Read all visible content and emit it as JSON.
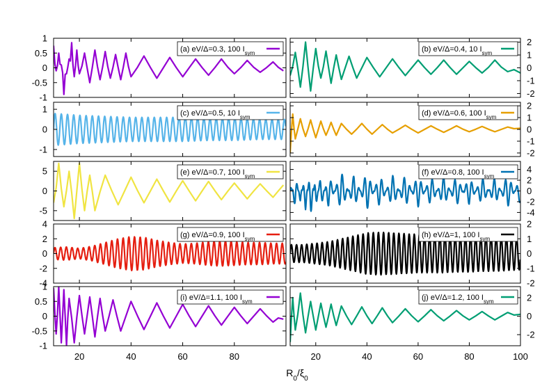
{
  "chart_data": {
    "type": "line",
    "layout": "5x2 grid of panels sharing x axis",
    "xlabel": "R₀/ξ₀",
    "xlim_left": [
      10,
      100
    ],
    "xlim_right": [
      10,
      100
    ],
    "xticks_left": [
      "20",
      "40",
      "60",
      "80"
    ],
    "xticks_right": [
      "20",
      "40",
      "60",
      "80",
      "100"
    ],
    "legend_placement": "top-right",
    "grid": false,
    "panels": [
      {
        "id": "a",
        "label": "(a) eV/Δ=0.3, 100 I",
        "label_sub": "sym",
        "color": "#9400d3",
        "column": "left",
        "ylim": [
          -1,
          1
        ],
        "yticks": [
          {
            "v": 1,
            "t": "1"
          },
          {
            "v": 0.5,
            "t": "0.5"
          },
          {
            "v": 0,
            "t": "0"
          },
          {
            "v": -0.5,
            "t": "-0.5"
          },
          {
            "v": -1,
            "t": "-1"
          }
        ],
        "x": [
          10,
          11,
          12,
          13,
          14,
          15,
          16,
          17,
          18,
          19,
          20,
          22,
          24,
          26,
          28,
          30,
          32,
          34,
          36,
          38,
          40,
          45,
          50,
          55,
          60,
          65,
          70,
          75,
          80,
          85,
          90,
          95,
          99
        ],
        "values": [
          0.75,
          -0.1,
          0.5,
          0.1,
          -0.9,
          -0.2,
          0.3,
          0.85,
          -0.3,
          0.6,
          -0.2,
          0.5,
          -0.5,
          0.6,
          -0.4,
          0.55,
          -0.35,
          0.45,
          -0.4,
          0.5,
          -0.3,
          0.4,
          -0.35,
          0.35,
          -0.3,
          0.3,
          -0.25,
          0.3,
          -0.2,
          0.25,
          -0.15,
          0.2,
          -0.1
        ]
      },
      {
        "id": "b",
        "label": "(b) eV/Δ=0.4, 10 I",
        "label_sub": "sym",
        "color": "#009e73",
        "column": "right",
        "ylim": [
          -2.3,
          2.3
        ],
        "yticks": [
          {
            "v": 2,
            "t": "2"
          },
          {
            "v": 1,
            "t": "1"
          },
          {
            "v": 0,
            "t": "0"
          },
          {
            "v": -1,
            "t": "-1"
          },
          {
            "v": -2,
            "t": "-2"
          }
        ],
        "x": [
          10,
          12,
          14,
          16,
          18,
          20,
          22,
          24,
          26,
          28,
          30,
          33,
          36,
          40,
          45,
          50,
          55,
          60,
          65,
          70,
          75,
          80,
          85,
          90,
          95,
          100
        ],
        "values": [
          -0.6,
          1.2,
          -1.5,
          2.0,
          -1.8,
          1.5,
          -0.8,
          1.3,
          -1.2,
          1.0,
          -0.9,
          0.9,
          -0.8,
          0.8,
          -0.7,
          0.7,
          -0.6,
          0.6,
          -0.5,
          0.6,
          -0.5,
          0.5,
          -0.4,
          0.6,
          -0.3,
          -0.4
        ]
      },
      {
        "id": "c",
        "label": "(c) eV/Δ=0.5, 10 I",
        "label_sub": "sym",
        "color": "#56b4e9",
        "column": "left",
        "ylim": [
          -1.35,
          1.35
        ],
        "yticks": [
          {
            "v": 1,
            "t": "1"
          },
          {
            "v": 0,
            "t": "0"
          },
          {
            "v": -1,
            "t": "-1"
          }
        ],
        "x": [
          10,
          20,
          30,
          40,
          50,
          60,
          70,
          80,
          90,
          99
        ],
        "values": [
          0.8,
          0.7,
          0.65,
          0.6,
          0.6,
          0.6,
          0.55,
          0.55,
          0.5,
          0.5
        ],
        "wave_period": 2.4
      },
      {
        "id": "d",
        "label": "(d) eV/Δ=0.6, 100 I",
        "label_sub": "sym",
        "color": "#e69f00",
        "column": "right",
        "ylim": [
          -2.3,
          2.3
        ],
        "yticks": [
          {
            "v": 2,
            "t": "2"
          },
          {
            "v": 1,
            "t": "1"
          },
          {
            "v": 0,
            "t": "0"
          },
          {
            "v": -1,
            "t": "-1"
          },
          {
            "v": -2,
            "t": "-2"
          }
        ],
        "x": [
          10,
          11,
          12,
          14,
          16,
          18,
          20,
          22,
          24,
          26,
          28,
          30,
          34,
          38,
          42,
          46,
          50,
          55,
          60,
          65,
          70,
          75,
          80,
          85,
          90,
          95,
          100
        ],
        "values": [
          -2.0,
          1.3,
          -0.8,
          0.9,
          -0.6,
          0.8,
          -0.7,
          0.7,
          -0.5,
          0.6,
          -0.5,
          0.5,
          -0.4,
          0.5,
          -0.4,
          0.4,
          -0.3,
          0.35,
          -0.3,
          0.3,
          -0.25,
          0.3,
          -0.2,
          0.25,
          -0.2,
          0.2,
          0.1
        ]
      },
      {
        "id": "e",
        "label": "(e) eV/Δ=0.7, 100 I",
        "label_sub": "sym",
        "color": "#f0e442",
        "column": "left",
        "ylim": [
          -7.5,
          7.5
        ],
        "yticks": [
          {
            "v": 5,
            "t": "5"
          },
          {
            "v": 0,
            "t": "0"
          },
          {
            "v": -5,
            "t": "-5"
          }
        ],
        "x": [
          10,
          12,
          14,
          16,
          18,
          20,
          22,
          24,
          26,
          30,
          35,
          40,
          45,
          50,
          55,
          60,
          65,
          70,
          75,
          80,
          85,
          90,
          95,
          99
        ],
        "values": [
          -3.0,
          7.0,
          -4.0,
          5.0,
          -7.0,
          7.0,
          -5.0,
          4.0,
          -5.0,
          4.0,
          -3.5,
          3.5,
          -3.0,
          3.0,
          -2.8,
          2.6,
          -2.5,
          2.4,
          -2.2,
          2.0,
          -2.0,
          1.8,
          -1.6,
          1.5
        ]
      },
      {
        "id": "f",
        "label": "(f) eV/Δ=0.8, 100 I",
        "label_sub": "sym",
        "color": "#0072b2",
        "column": "right",
        "ylim": [
          -5.5,
          5.5
        ],
        "yticks": [
          {
            "v": 4,
            "t": "4"
          },
          {
            "v": 2,
            "t": "2"
          },
          {
            "v": 0,
            "t": "0"
          },
          {
            "v": -2,
            "t": "-2"
          },
          {
            "v": -4,
            "t": "-4"
          }
        ],
        "x": [
          10,
          12,
          14,
          16,
          18,
          20,
          22,
          25,
          30,
          35,
          40,
          45,
          50,
          55,
          60,
          65,
          70,
          75,
          80,
          85,
          90,
          95,
          100
        ],
        "values": [
          1.5,
          -3.0,
          2.0,
          -3.5,
          4.5,
          -3.0,
          3.0,
          -3.0,
          3.5,
          -3.0,
          3.5,
          -3.0,
          3.0,
          -3.0,
          3.0,
          -2.8,
          2.8,
          -2.8,
          2.6,
          -2.6,
          2.5,
          -3.0,
          2.5
        ],
        "wave_period": 2.2
      },
      {
        "id": "g",
        "label": "(g) eV/Δ=0.9, 100 I",
        "label_sub": "sym",
        "color": "#e51e10",
        "column": "left",
        "ylim": [
          -4,
          4
        ],
        "yticks": [
          {
            "v": 4,
            "t": "4"
          },
          {
            "v": 2,
            "t": "2"
          },
          {
            "v": 0,
            "t": "0"
          },
          {
            "v": -2,
            "t": "-2"
          },
          {
            "v": -4,
            "t": "-4"
          }
        ],
        "x": [
          10,
          15,
          20,
          25,
          30,
          35,
          40,
          45,
          50,
          55,
          60,
          65,
          70,
          75,
          80,
          85,
          90,
          95,
          99
        ],
        "values": [
          0.8,
          0.9,
          0.7,
          1.0,
          1.5,
          2.0,
          2.3,
          2.2,
          1.8,
          1.5,
          1.3,
          1.4,
          1.6,
          1.7,
          1.6,
          1.5,
          1.5,
          1.4,
          1.4
        ],
        "wave_period": 2.2
      },
      {
        "id": "h",
        "label": "(h) eV/Δ=1, 100 I",
        "label_sub": "sym",
        "color": "#000000",
        "column": "right",
        "ylim": [
          -2,
          2
        ],
        "yticks": [
          {
            "v": 2,
            "t": "2"
          },
          {
            "v": 1,
            "t": "1"
          },
          {
            "v": 0,
            "t": "0"
          },
          {
            "v": -1,
            "t": "-1"
          },
          {
            "v": -2,
            "t": "-2"
          }
        ],
        "x": [
          10,
          15,
          20,
          25,
          30,
          35,
          40,
          45,
          50,
          55,
          60,
          65,
          70,
          75,
          80,
          85,
          90,
          95,
          100
        ],
        "values": [
          0.6,
          0.6,
          0.7,
          0.8,
          1.0,
          1.2,
          1.4,
          1.45,
          1.4,
          1.35,
          1.3,
          1.3,
          1.3,
          1.25,
          1.25,
          1.2,
          1.2,
          1.15,
          1.1
        ],
        "wave_period": 2.0
      },
      {
        "id": "i",
        "label": "(i) eV/Δ=1.1, 100 I",
        "label_sub": "sym",
        "color": "#9400d3",
        "column": "left",
        "ylim": [
          -1,
          1
        ],
        "yticks": [
          {
            "v": 1,
            "t": "1"
          },
          {
            "v": 0.5,
            "t": "0.5"
          },
          {
            "v": 0,
            "t": "0"
          },
          {
            "v": -0.5,
            "t": "-0.5"
          },
          {
            "v": -1,
            "t": "-1"
          }
        ],
        "x": [
          10,
          11,
          12,
          13,
          14,
          15,
          16,
          18,
          20,
          22,
          24,
          26,
          28,
          30,
          33,
          36,
          40,
          45,
          50,
          55,
          60,
          65,
          70,
          75,
          80,
          85,
          90,
          95,
          99
        ],
        "values": [
          0.95,
          -0.6,
          1.0,
          -0.9,
          0.9,
          -1.0,
          0.6,
          -0.9,
          0.7,
          -0.6,
          0.65,
          -0.7,
          0.6,
          -0.5,
          0.55,
          -0.5,
          0.5,
          -0.45,
          0.45,
          -0.4,
          0.4,
          -0.35,
          0.35,
          -0.3,
          0.3,
          -0.25,
          0.25,
          -0.2,
          -0.1
        ]
      },
      {
        "id": "j",
        "label": "(j) eV/Δ=1.2, 100 I",
        "label_sub": "sym",
        "color": "#009e73",
        "column": "right",
        "ylim": [
          -3.2,
          3.2
        ],
        "yticks": [
          {
            "v": 2,
            "t": "2"
          },
          {
            "v": 0,
            "t": "0"
          },
          {
            "v": -2,
            "t": "-2"
          }
        ],
        "x": [
          10,
          11,
          12,
          14,
          16,
          18,
          20,
          22,
          24,
          26,
          28,
          30,
          34,
          38,
          42,
          46,
          50,
          55,
          60,
          65,
          70,
          75,
          80,
          85,
          90,
          95,
          100
        ],
        "values": [
          -2.8,
          2.0,
          -1.5,
          2.5,
          -1.8,
          1.6,
          -1.5,
          1.4,
          -1.2,
          1.3,
          -1.0,
          1.1,
          -0.9,
          1.0,
          -0.8,
          0.9,
          -0.7,
          0.8,
          -0.6,
          0.7,
          -0.5,
          0.6,
          -0.4,
          0.5,
          -0.4,
          0.4,
          0.2
        ]
      }
    ]
  }
}
